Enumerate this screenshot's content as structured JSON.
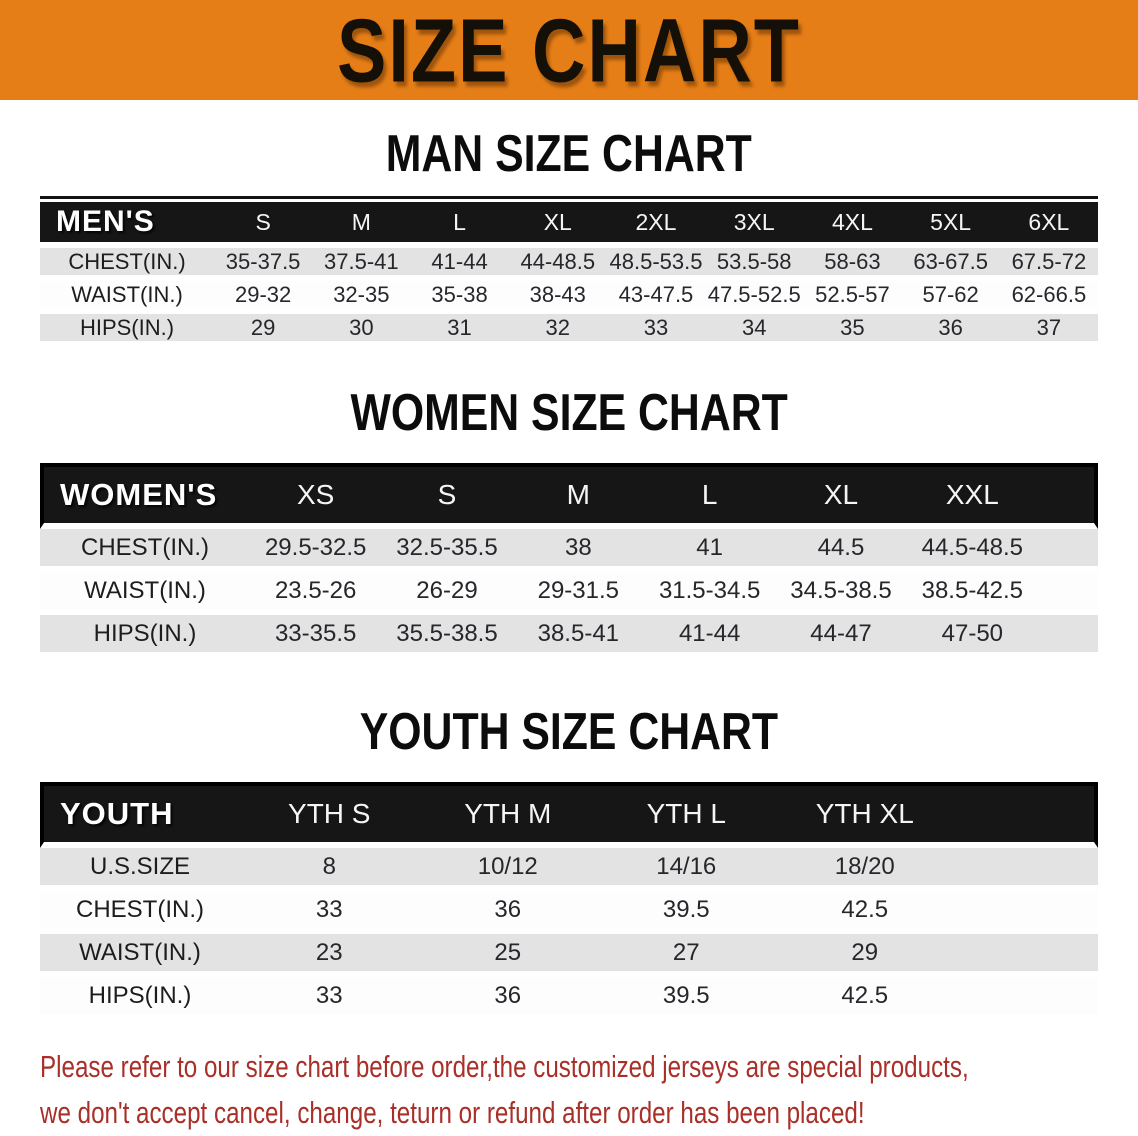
{
  "banner": {
    "title": "SIZE CHART",
    "background_color": "#e67e17",
    "text_color": "#141008"
  },
  "men": {
    "heading": "MAN SIZE CHART",
    "table": {
      "label": "MEN'S",
      "columns": [
        "S",
        "M",
        "L",
        "XL",
        "2XL",
        "3XL",
        "4XL",
        "5XL",
        "6XL"
      ],
      "rows": [
        {
          "label": "CHEST(IN.)",
          "values": [
            "35-37.5",
            "37.5-41",
            "41-44",
            "44-48.5",
            "48.5-53.5",
            "53.5-58",
            "58-63",
            "63-67.5",
            "67.5-72"
          ]
        },
        {
          "label": "WAIST(IN.)",
          "values": [
            "29-32",
            "32-35",
            "35-38",
            "38-43",
            "43-47.5",
            "47.5-52.5",
            "52.5-57",
            "57-62",
            "62-66.5"
          ]
        },
        {
          "label": "HIPS(IN.)",
          "values": [
            "29",
            "30",
            "31",
            "32",
            "33",
            "34",
            "35",
            "36",
            "37"
          ]
        }
      ]
    }
  },
  "women": {
    "heading": "WOMEN SIZE CHART",
    "table": {
      "label": "WOMEN'S",
      "columns": [
        "XS",
        "S",
        "M",
        "L",
        "XL",
        "XXL"
      ],
      "spacer": true,
      "rows": [
        {
          "label": "CHEST(IN.)",
          "values": [
            "29.5-32.5",
            "32.5-35.5",
            "38",
            "41",
            "44.5",
            "44.5-48.5"
          ]
        },
        {
          "label": "WAIST(IN.)",
          "values": [
            "23.5-26",
            "26-29",
            "29-31.5",
            "31.5-34.5",
            "34.5-38.5",
            "38.5-42.5"
          ]
        },
        {
          "label": "HIPS(IN.)",
          "values": [
            "33-35.5",
            "35.5-38.5",
            "38.5-41",
            "41-44",
            "44-47",
            "47-50"
          ]
        }
      ]
    }
  },
  "youth": {
    "heading": "YOUTH SIZE CHART",
    "table": {
      "label": "YOUTH",
      "columns": [
        "YTH S",
        "YTH M",
        "YTH L",
        "YTH XL"
      ],
      "spacer": true,
      "rows": [
        {
          "label": "U.S.SIZE",
          "values": [
            "8",
            "10/12",
            "14/16",
            "18/20"
          ]
        },
        {
          "label": "CHEST(IN.)",
          "values": [
            "33",
            "36",
            "39.5",
            "42.5"
          ]
        },
        {
          "label": "WAIST(IN.)",
          "values": [
            "23",
            "25",
            "27",
            "29"
          ]
        },
        {
          "label": "HIPS(IN.)",
          "values": [
            "33",
            "36",
            "39.5",
            "42.5"
          ]
        }
      ]
    }
  },
  "disclaimer": {
    "line1": "Please refer to our size chart before order,the customized jerseys are special products,",
    "line2": "we don't accept cancel, change, teturn or refund after order has been placed!",
    "text_color": "#a93029"
  },
  "colors": {
    "header_bar": "#161616",
    "stripe_gray": "#e3e3e3",
    "row_white": "#fdfdfd"
  }
}
